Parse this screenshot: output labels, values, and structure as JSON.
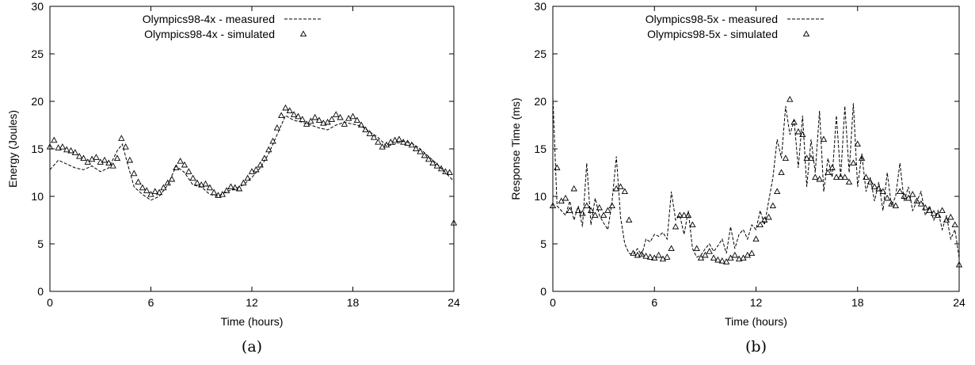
{
  "chart_data": [
    {
      "type": "line",
      "panel": "a",
      "caption": "(a)",
      "xlabel": "Time (hours)",
      "ylabel": "Energy (Joules)",
      "xlim": [
        0,
        24
      ],
      "ylim": [
        0,
        30
      ],
      "xticks": [
        0,
        6,
        12,
        18,
        24
      ],
      "yticks": [
        0,
        5,
        10,
        15,
        20,
        25,
        30
      ],
      "grid": false,
      "legend_position": "top-left",
      "series": [
        {
          "name": "Olympics98-4x - measured",
          "style": "dashed-line",
          "x": [
            0,
            0.5,
            1,
            1.5,
            2,
            2.5,
            3,
            3.5,
            4,
            4.3,
            4.6,
            5,
            5.5,
            6,
            6.5,
            7,
            7.5,
            8,
            8.5,
            9,
            9.5,
            10,
            10.5,
            11,
            11.5,
            12,
            12.5,
            13,
            13.5,
            14,
            14.5,
            15,
            15.5,
            16,
            16.5,
            17,
            17.5,
            18,
            18.5,
            19,
            19.5,
            20,
            20.5,
            21,
            21.5,
            22,
            22.5,
            23,
            23.5,
            24
          ],
          "y": [
            12.8,
            13.8,
            13.4,
            13.0,
            12.8,
            13.2,
            12.6,
            13.0,
            14.8,
            15.5,
            13.5,
            11.0,
            10.2,
            9.6,
            10.0,
            11.2,
            13.2,
            12.5,
            11.2,
            11.0,
            10.2,
            10.0,
            10.5,
            10.8,
            11.2,
            12.0,
            13.0,
            14.5,
            16.5,
            18.5,
            18.0,
            17.8,
            17.5,
            17.2,
            17.0,
            17.5,
            17.8,
            17.6,
            17.4,
            16.8,
            16.2,
            15.3,
            15.5,
            15.8,
            15.6,
            15.0,
            14.2,
            13.4,
            12.5,
            11.6
          ]
        },
        {
          "name": "Olympics98-4x - simulated",
          "style": "triangle-markers",
          "x": [
            0,
            0.25,
            0.5,
            0.75,
            1,
            1.25,
            1.5,
            1.75,
            2,
            2.25,
            2.5,
            2.75,
            3,
            3.25,
            3.5,
            3.75,
            4,
            4.25,
            4.5,
            4.75,
            5,
            5.25,
            5.5,
            5.75,
            6,
            6.25,
            6.5,
            6.75,
            7,
            7.25,
            7.5,
            7.75,
            8,
            8.25,
            8.5,
            8.75,
            9,
            9.25,
            9.5,
            9.75,
            10,
            10.25,
            10.5,
            10.75,
            11,
            11.25,
            11.5,
            11.75,
            12,
            12.25,
            12.5,
            12.75,
            13,
            13.25,
            13.5,
            13.75,
            14,
            14.25,
            14.5,
            14.75,
            15,
            15.25,
            15.5,
            15.75,
            16,
            16.25,
            16.5,
            16.75,
            17,
            17.25,
            17.5,
            17.75,
            18,
            18.25,
            18.5,
            18.75,
            19,
            19.25,
            19.5,
            19.75,
            20,
            20.25,
            20.5,
            20.75,
            21,
            21.25,
            21.5,
            21.75,
            22,
            22.25,
            22.5,
            22.75,
            23,
            23.25,
            23.5,
            23.75,
            24
          ],
          "y": [
            15.2,
            15.9,
            15.1,
            15.2,
            14.9,
            14.8,
            14.6,
            14.2,
            14.0,
            13.6,
            13.9,
            14.1,
            13.6,
            13.8,
            13.5,
            13.2,
            14.0,
            16.1,
            15.2,
            13.8,
            12.4,
            11.5,
            10.9,
            10.6,
            10.2,
            10.5,
            10.4,
            10.9,
            11.4,
            11.8,
            13.0,
            13.7,
            13.3,
            12.6,
            11.9,
            11.4,
            11.2,
            11.3,
            10.9,
            10.4,
            10.1,
            10.2,
            10.6,
            11.0,
            10.9,
            10.8,
            11.4,
            11.9,
            12.6,
            12.8,
            13.3,
            14.0,
            14.9,
            15.8,
            17.2,
            18.5,
            19.3,
            19.0,
            18.6,
            18.4,
            18.1,
            17.6,
            17.9,
            18.3,
            18.0,
            17.7,
            17.8,
            18.1,
            18.6,
            18.3,
            17.6,
            18.2,
            18.4,
            18.0,
            17.5,
            17.0,
            16.6,
            16.2,
            15.7,
            15.2,
            15.4,
            15.7,
            15.9,
            16.0,
            15.7,
            15.6,
            15.4,
            15.0,
            14.7,
            14.3,
            13.9,
            13.5,
            13.2,
            12.9,
            12.6,
            12.5,
            7.2
          ]
        }
      ]
    },
    {
      "type": "line",
      "panel": "b",
      "caption": "(b)",
      "xlabel": "Time (hours)",
      "ylabel": "Response Time (ms)",
      "xlim": [
        0,
        24
      ],
      "ylim": [
        0,
        30
      ],
      "xticks": [
        0,
        6,
        12,
        18,
        24
      ],
      "yticks": [
        0,
        5,
        10,
        15,
        20,
        25,
        30
      ],
      "grid": false,
      "legend_position": "top-left",
      "series": [
        {
          "name": "Olympics98-5x - measured",
          "style": "dashed-line",
          "x": [
            0,
            0.25,
            0.5,
            0.75,
            1,
            1.25,
            1.5,
            1.75,
            2,
            2.25,
            2.5,
            2.75,
            3,
            3.25,
            3.5,
            3.75,
            4,
            4.25,
            4.5,
            4.75,
            5,
            5.25,
            5.5,
            5.75,
            6,
            6.25,
            6.5,
            6.75,
            7,
            7.25,
            7.5,
            7.75,
            8,
            8.25,
            8.5,
            8.75,
            9,
            9.25,
            9.5,
            9.75,
            10,
            10.25,
            10.5,
            10.75,
            11,
            11.25,
            11.5,
            11.75,
            12,
            12.25,
            12.5,
            12.75,
            13,
            13.25,
            13.5,
            13.75,
            14,
            14.25,
            14.5,
            14.75,
            15,
            15.25,
            15.5,
            15.75,
            16,
            16.25,
            16.5,
            16.75,
            17,
            17.25,
            17.5,
            17.75,
            18,
            18.25,
            18.5,
            18.75,
            19,
            19.25,
            19.5,
            19.75,
            20,
            20.25,
            20.5,
            20.75,
            21,
            21.25,
            21.5,
            21.75,
            22,
            22.25,
            22.5,
            22.75,
            23,
            23.25,
            23.5,
            23.75,
            24
          ],
          "y": [
            20.5,
            9.0,
            8.5,
            8.0,
            9.5,
            7.5,
            9.0,
            6.8,
            13.5,
            7.0,
            9.8,
            8.0,
            7.2,
            6.5,
            9.5,
            14.2,
            7.8,
            5.0,
            4.0,
            3.9,
            4.5,
            3.8,
            5.5,
            5.2,
            6.0,
            5.8,
            6.2,
            5.5,
            10.5,
            7.5,
            8.0,
            6.0,
            8.5,
            4.5,
            3.6,
            3.8,
            4.5,
            5.0,
            4.2,
            4.8,
            5.5,
            4.0,
            6.8,
            4.5,
            6.0,
            6.5,
            5.5,
            7.0,
            6.5,
            8.5,
            7.0,
            9.5,
            12.0,
            16.0,
            14.0,
            19.5,
            16.5,
            18.0,
            13.0,
            18.5,
            11.0,
            16.0,
            12.5,
            19.0,
            10.5,
            14.0,
            12.0,
            18.5,
            12.0,
            19.5,
            12.5,
            19.8,
            11.0,
            14.5,
            10.5,
            12.0,
            9.5,
            11.5,
            8.5,
            12.5,
            9.0,
            10.0,
            13.5,
            9.5,
            11.0,
            8.5,
            9.5,
            10.5,
            8.0,
            9.0,
            7.5,
            8.5,
            6.5,
            8.0,
            5.5,
            6.5,
            3.5
          ]
        },
        {
          "name": "Olympics98-5x - simulated",
          "style": "triangle-markers",
          "x": [
            0,
            0.25,
            0.5,
            0.75,
            1,
            1.25,
            1.5,
            1.75,
            2,
            2.25,
            2.5,
            2.75,
            3,
            3.25,
            3.5,
            3.75,
            4,
            4.25,
            4.5,
            4.75,
            5,
            5.25,
            5.5,
            5.75,
            6,
            6.25,
            6.5,
            6.75,
            7,
            7.25,
            7.5,
            7.75,
            8,
            8.25,
            8.5,
            8.75,
            9,
            9.25,
            9.5,
            9.75,
            10,
            10.25,
            10.5,
            10.75,
            11,
            11.25,
            11.5,
            11.75,
            12,
            12.25,
            12.5,
            12.75,
            13,
            13.25,
            13.5,
            13.75,
            14,
            14.25,
            14.5,
            14.75,
            15,
            15.25,
            15.5,
            15.75,
            16,
            16.25,
            16.5,
            16.75,
            17,
            17.25,
            17.5,
            17.75,
            18,
            18.25,
            18.5,
            18.75,
            19,
            19.25,
            19.5,
            19.75,
            20,
            20.25,
            20.5,
            20.75,
            21,
            21.25,
            21.5,
            21.75,
            22,
            22.25,
            22.5,
            22.75,
            23,
            23.25,
            23.5,
            23.75,
            24
          ],
          "y": [
            9.0,
            13.0,
            9.5,
            9.8,
            8.5,
            10.8,
            8.5,
            8.2,
            9.0,
            8.5,
            8.0,
            8.8,
            8.0,
            8.5,
            9.0,
            10.8,
            11.0,
            10.5,
            7.5,
            4.0,
            3.8,
            3.9,
            3.7,
            3.6,
            3.5,
            3.8,
            3.4,
            3.6,
            4.5,
            6.8,
            8.0,
            8.0,
            8.0,
            7.0,
            4.5,
            3.5,
            3.8,
            4.2,
            3.5,
            3.3,
            3.2,
            3.1,
            3.5,
            3.8,
            3.4,
            3.5,
            3.8,
            4.0,
            5.5,
            7.0,
            7.5,
            7.8,
            9.0,
            10.5,
            12.5,
            14.0,
            20.2,
            17.8,
            16.8,
            16.5,
            14.0,
            14.0,
            12.0,
            11.8,
            16.0,
            12.5,
            13.0,
            12.0,
            12.0,
            12.0,
            11.5,
            13.5,
            15.5,
            14.0,
            12.0,
            11.5,
            11.0,
            10.8,
            10.5,
            9.8,
            9.2,
            9.0,
            10.5,
            10.0,
            9.8,
            10.2,
            9.5,
            9.2,
            8.8,
            8.5,
            8.2,
            8.0,
            8.5,
            7.5,
            7.8,
            7.0,
            2.8
          ]
        }
      ]
    }
  ]
}
